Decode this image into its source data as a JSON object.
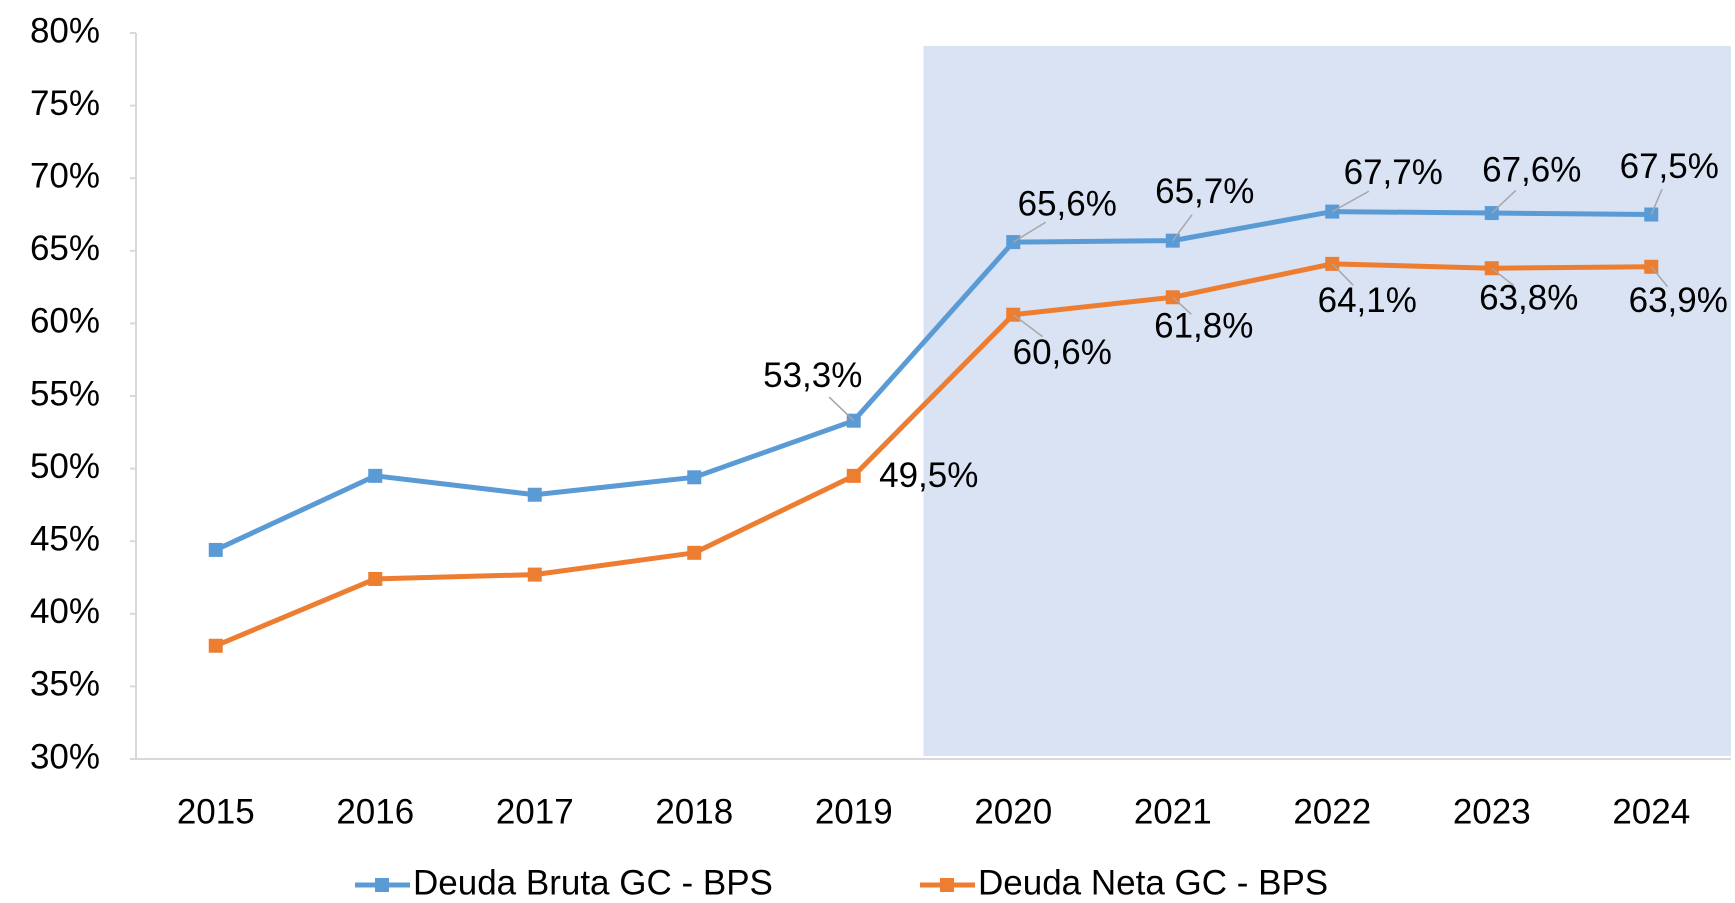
{
  "chart_data": {
    "type": "line",
    "categories": [
      "2015",
      "2016",
      "2017",
      "2018",
      "2019",
      "2020",
      "2021",
      "2022",
      "2023",
      "2024"
    ],
    "series": [
      {
        "name": "Deuda Bruta GC - BPS",
        "color": "#5b9bd5",
        "values": [
          44.4,
          49.5,
          48.2,
          49.4,
          53.3,
          65.6,
          65.7,
          67.7,
          67.6,
          67.5
        ],
        "value_labels": [
          null,
          null,
          null,
          null,
          "53,3%",
          "65,6%",
          "65,7%",
          "67,7%",
          "67,6%",
          "67,5%"
        ]
      },
      {
        "name": "Deuda Neta GC - BPS",
        "color": "#ed7d31",
        "values": [
          37.8,
          42.4,
          42.7,
          44.2,
          49.5,
          60.6,
          61.8,
          64.1,
          63.8,
          63.9
        ],
        "value_labels": [
          null,
          null,
          null,
          null,
          "49,5%",
          "60,6%",
          "61,8%",
          "64,1%",
          "63,8%",
          "63,9%"
        ]
      }
    ],
    "ylim": [
      30,
      80
    ],
    "yticks": [
      {
        "value": 30,
        "label": "30%"
      },
      {
        "value": 35,
        "label": "35%"
      },
      {
        "value": 40,
        "label": "40%"
      },
      {
        "value": 45,
        "label": "45%"
      },
      {
        "value": 50,
        "label": "50%"
      },
      {
        "value": 55,
        "label": "55%"
      },
      {
        "value": 60,
        "label": "60%"
      },
      {
        "value": 65,
        "label": "65%"
      },
      {
        "value": 70,
        "label": "70%"
      },
      {
        "value": 75,
        "label": "75%"
      },
      {
        "value": 80,
        "label": "80%"
      }
    ],
    "grid": false,
    "legend": "bottom"
  }
}
